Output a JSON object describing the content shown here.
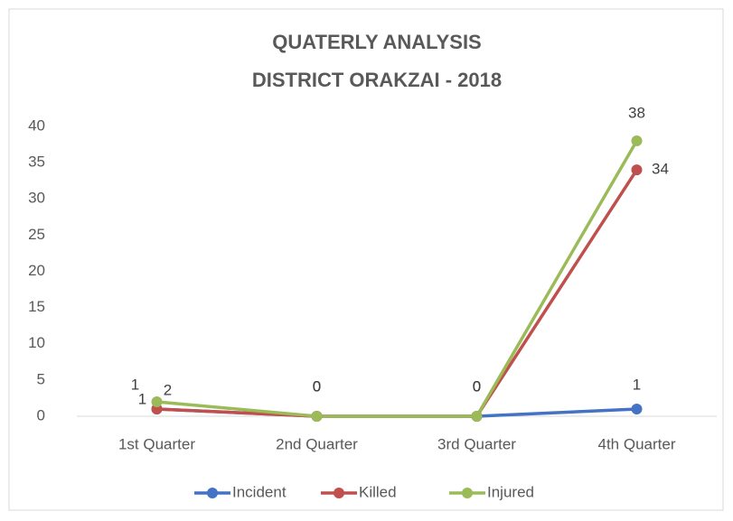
{
  "chart_data": {
    "type": "line",
    "title": "QUATERLY ANALYSIS",
    "subtitle": "DISTRICT ORAKZAI - 2018",
    "categories": [
      "1st Quarter",
      "2nd Quarter",
      "3rd Quarter",
      "4th Quarter"
    ],
    "series": [
      {
        "name": "Incident",
        "color": "#4472c4",
        "values": [
          1,
          0,
          0,
          1
        ]
      },
      {
        "name": "Killed",
        "color": "#c0504d",
        "values": [
          1,
          0,
          0,
          34
        ]
      },
      {
        "name": "Injured",
        "color": "#9bbb59",
        "values": [
          2,
          0,
          0,
          38
        ]
      }
    ],
    "ylim": [
      0,
      40
    ],
    "yticks": [
      0,
      5,
      10,
      15,
      20,
      25,
      30,
      35,
      40
    ],
    "grid": false,
    "legend": "bottom"
  }
}
